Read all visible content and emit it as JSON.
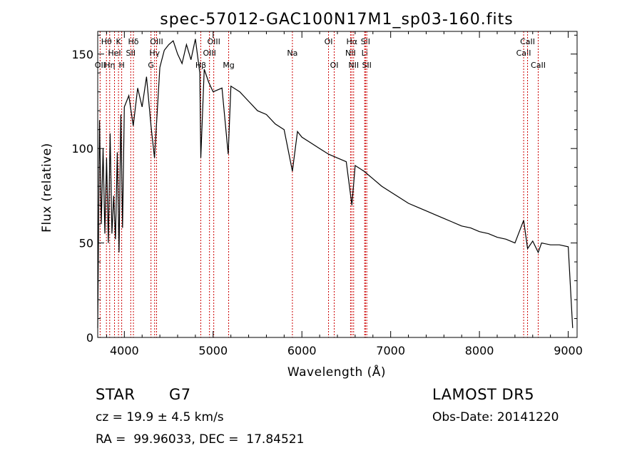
{
  "chart_data": {
    "type": "line",
    "title": "spec-57012-GAC100N17M1_sp03-160.fits",
    "xlabel": "Wavelength (Å)",
    "ylabel": "Flux (relative)",
    "xlim": [
      3700,
      9100
    ],
    "ylim": [
      0,
      162
    ],
    "x_ticks": [
      4000,
      5000,
      6000,
      7000,
      8000,
      9000
    ],
    "y_ticks": [
      0,
      50,
      100,
      150
    ],
    "grid": false,
    "line_color": "#000000",
    "marker_line_color": "#cc0000",
    "series": [
      {
        "x": [
          3700,
          3720,
          3740,
          3760,
          3780,
          3800,
          3820,
          3840,
          3860,
          3880,
          3900,
          3920,
          3940,
          3960,
          3980,
          4000,
          4050,
          4100,
          4150,
          4200,
          4250,
          4300,
          4340,
          4400,
          4450,
          4500,
          4550,
          4600,
          4650,
          4700,
          4750,
          4800,
          4850,
          4861,
          4900,
          4950,
          5000,
          5100,
          5170,
          5200,
          5300,
          5400,
          5500,
          5600,
          5700,
          5800,
          5893,
          5950,
          6000,
          6100,
          6200,
          6300,
          6400,
          6500,
          6563,
          6600,
          6700,
          6800,
          6900,
          7000,
          7100,
          7200,
          7300,
          7400,
          7500,
          7600,
          7700,
          7800,
          7900,
          8000,
          8100,
          8200,
          8300,
          8400,
          8498,
          8542,
          8600,
          8662,
          8700,
          8800,
          8900,
          9000,
          9050
        ],
        "y": [
          5,
          115,
          60,
          100,
          55,
          95,
          50,
          108,
          55,
          75,
          52,
          98,
          45,
          118,
          58,
          122,
          128,
          112,
          132,
          122,
          138,
          112,
          95,
          143,
          152,
          155,
          157,
          150,
          145,
          155,
          147,
          158,
          140,
          95,
          142,
          135,
          130,
          132,
          97,
          133,
          130,
          125,
          120,
          118,
          113,
          110,
          88,
          109,
          106,
          103,
          100,
          97,
          95,
          93,
          70,
          91,
          88,
          84,
          80,
          77,
          74,
          71,
          69,
          67,
          65,
          63,
          61,
          59,
          58,
          56,
          55,
          53,
          52,
          50,
          62,
          47,
          51,
          45,
          50,
          49,
          49,
          48,
          5
        ]
      }
    ],
    "lines": [
      {
        "wl": 3727,
        "label": "OII",
        "row": 3
      },
      {
        "wl": 3798,
        "label": "Hθ",
        "row": 1
      },
      {
        "wl": 3835,
        "label": "Hη",
        "row": 3
      },
      {
        "wl": 3889,
        "label": "HeI",
        "row": 2
      },
      {
        "wl": 3934,
        "label": "K",
        "row": 1
      },
      {
        "wl": 3970,
        "label": "H",
        "row": 3
      },
      {
        "wl": 4072,
        "label": "SII",
        "row": 2
      },
      {
        "wl": 4102,
        "label": "Hδ",
        "row": 1
      },
      {
        "wl": 4300,
        "label": "G",
        "row": 3
      },
      {
        "wl": 4341,
        "label": "Hγ",
        "row": 2
      },
      {
        "wl": 4363,
        "label": "OIII",
        "row": 1
      },
      {
        "wl": 4861,
        "label": "Hβ",
        "row": 3
      },
      {
        "wl": 4959,
        "label": "OIII",
        "row": 2
      },
      {
        "wl": 5007,
        "label": "OIII",
        "row": 1
      },
      {
        "wl": 5175,
        "label": "Mg",
        "row": 3
      },
      {
        "wl": 5893,
        "label": "Na",
        "row": 2
      },
      {
        "wl": 6300,
        "label": "OI",
        "row": 1
      },
      {
        "wl": 6364,
        "label": "OI",
        "row": 3
      },
      {
        "wl": 6548,
        "label": "NII",
        "row": 2
      },
      {
        "wl": 6563,
        "label": "Hα",
        "row": 1
      },
      {
        "wl": 6583,
        "label": "NII",
        "row": 3
      },
      {
        "wl": 6707,
        "label": "Li",
        "row": 2
      },
      {
        "wl": 6716,
        "label": "SII",
        "row": 1
      },
      {
        "wl": 6731,
        "label": "SII",
        "row": 3
      },
      {
        "wl": 8498,
        "label": "CaII",
        "row": 2
      },
      {
        "wl": 8542,
        "label": "CaII",
        "row": 1
      },
      {
        "wl": 8662,
        "label": "CaII",
        "row": 3
      }
    ]
  },
  "info": {
    "class": "STAR",
    "subclass": "G7",
    "survey": "LAMOST DR5",
    "cz": "cz = 19.9 ± 4.5 km/s",
    "obs_date": "Obs-Date: 20141220",
    "coords": "RA =  99.96033, DEC =  17.84521"
  }
}
